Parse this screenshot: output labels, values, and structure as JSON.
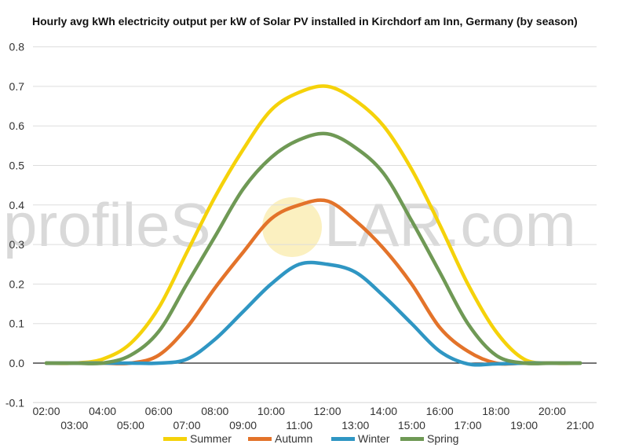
{
  "chart_data": {
    "type": "line",
    "title": "Hourly avg kWh electricity output per kW of Solar PV installed in Kirchdorf am Inn, Germany (by season)",
    "xlabel": "",
    "ylabel": "",
    "ylim": [
      -0.1,
      0.8
    ],
    "yticks": [
      "-0.1",
      "0.0",
      "0.1",
      "0.2",
      "0.3",
      "0.4",
      "0.5",
      "0.6",
      "0.7",
      "0.8"
    ],
    "x": [
      "02:00",
      "03:00",
      "04:00",
      "05:00",
      "06:00",
      "07:00",
      "08:00",
      "09:00",
      "10:00",
      "11:00",
      "12:00",
      "13:00",
      "14:00",
      "15:00",
      "16:00",
      "17:00",
      "18:00",
      "19:00",
      "20:00",
      "21:00"
    ],
    "grid": true,
    "legend": "bottom",
    "series": [
      {
        "name": "Summer",
        "color": "#f5d20a",
        "values": [
          0,
          0,
          0.01,
          0.05,
          0.14,
          0.28,
          0.42,
          0.54,
          0.64,
          0.685,
          0.7,
          0.665,
          0.6,
          0.49,
          0.35,
          0.2,
          0.08,
          0.01,
          0,
          0
        ]
      },
      {
        "name": "Autumn",
        "color": "#e3732a",
        "values": [
          0,
          0,
          0,
          0,
          0.02,
          0.09,
          0.19,
          0.28,
          0.365,
          0.4,
          0.41,
          0.36,
          0.29,
          0.2,
          0.09,
          0.03,
          0,
          0,
          0,
          0
        ]
      },
      {
        "name": "Winter",
        "color": "#2f96c3",
        "values": [
          0,
          0,
          0,
          0,
          0,
          0.01,
          0.06,
          0.13,
          0.2,
          0.25,
          0.25,
          0.23,
          0.17,
          0.1,
          0.03,
          -0.002,
          -0.002,
          0,
          0,
          0
        ]
      },
      {
        "name": "Spring",
        "color": "#6f9955",
        "values": [
          0,
          0,
          0,
          0.02,
          0.08,
          0.2,
          0.32,
          0.44,
          0.52,
          0.565,
          0.58,
          0.545,
          0.48,
          0.36,
          0.23,
          0.1,
          0.02,
          0,
          0,
          0
        ]
      }
    ]
  },
  "watermark": {
    "prefix": "profileS",
    "suffix": "LAR.com"
  }
}
